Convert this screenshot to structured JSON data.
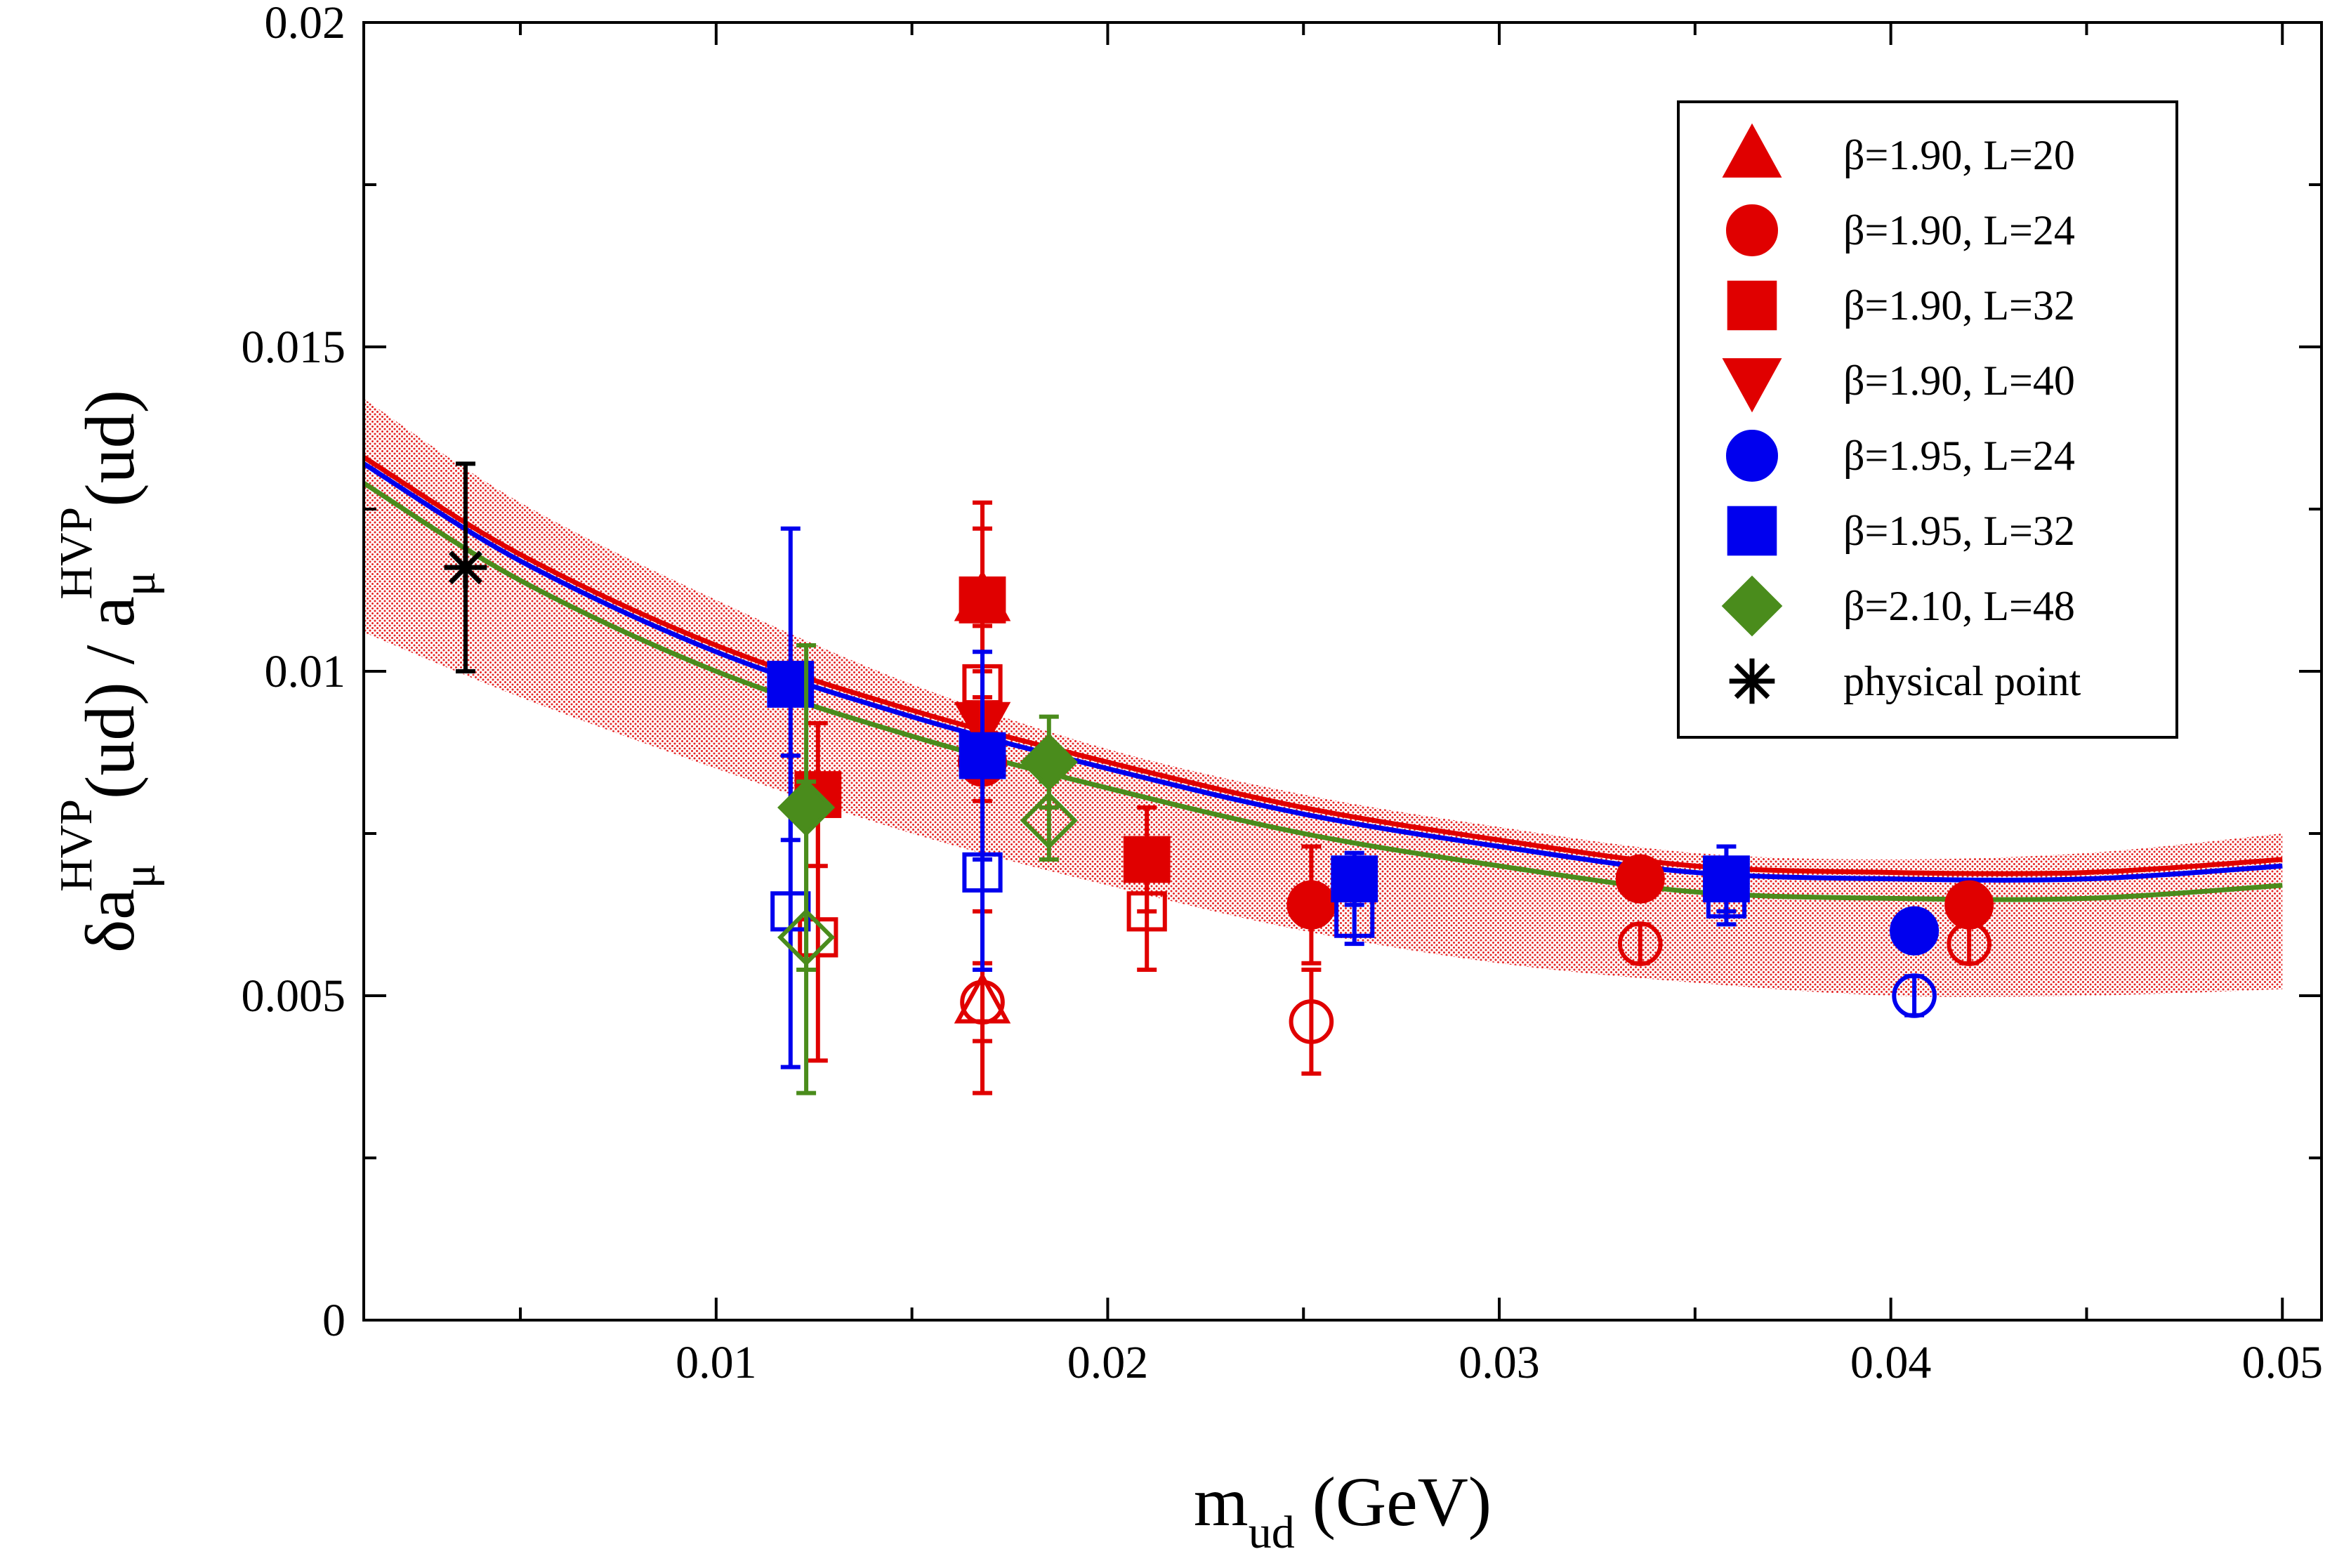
{
  "chart_data": {
    "type": "scatter",
    "title": "",
    "xlabel": {
      "main": "m",
      "sub": "ud",
      "rest": " (GeV)"
    },
    "ylabel": {
      "delta": "δa",
      "sub1": "μ",
      "sup1": "HVP",
      "mid": "(ud) / a",
      "sub2": "μ",
      "sup2": "HVP",
      "end": "(ud)"
    },
    "xlim": [
      0.001,
      0.051
    ],
    "ylim": [
      0,
      0.02
    ],
    "xticks": [
      0.01,
      0.02,
      0.03,
      0.04,
      0.05
    ],
    "xtick_labels": [
      "0.01",
      "0.02",
      "0.03",
      "0.04",
      "0.05"
    ],
    "yticks": [
      0,
      0.005,
      0.01,
      0.015,
      0.02
    ],
    "ytick_labels": [
      "0",
      "0.005",
      "0.01",
      "0.015",
      "0.02"
    ],
    "legend_position": "top-right",
    "legend": [
      {
        "label": "β=1.90, L=20",
        "marker": "triangle-up",
        "color": "#e00000"
      },
      {
        "label": "β=1.90, L=24",
        "marker": "circle",
        "color": "#e00000"
      },
      {
        "label": "β=1.90, L=32",
        "marker": "square",
        "color": "#e00000"
      },
      {
        "label": "β=1.90, L=40",
        "marker": "triangle-down",
        "color": "#e00000"
      },
      {
        "label": "β=1.95, L=24",
        "marker": "circle",
        "color": "#0000ee"
      },
      {
        "label": "β=1.95, L=32",
        "marker": "square",
        "color": "#0000ee"
      },
      {
        "label": "β=2.10, L=48",
        "marker": "diamond",
        "color": "#4a8c1c"
      },
      {
        "label": "physical point",
        "marker": "asterisk",
        "color": "#000000"
      }
    ],
    "fit_curves": [
      {
        "name": "fit β=1.90",
        "color": "#e00000",
        "x": [
          0.001,
          0.005,
          0.01,
          0.015,
          0.02,
          0.025,
          0.03,
          0.035,
          0.04,
          0.045,
          0.05
        ],
        "y": [
          0.0133,
          0.0118,
          0.0104,
          0.0094,
          0.0086,
          0.0079,
          0.0074,
          0.007,
          0.0069,
          0.0069,
          0.0071
        ]
      },
      {
        "name": "fit β=1.95",
        "color": "#0000ee",
        "x": [
          0.001,
          0.005,
          0.01,
          0.015,
          0.02,
          0.025,
          0.03,
          0.035,
          0.04,
          0.045,
          0.05
        ],
        "y": [
          0.0132,
          0.0117,
          0.0103,
          0.0093,
          0.0085,
          0.0078,
          0.0073,
          0.0069,
          0.0068,
          0.0068,
          0.007
        ]
      },
      {
        "name": "fit β=2.10",
        "color": "#4a8c1c",
        "x": [
          0.001,
          0.005,
          0.01,
          0.015,
          0.02,
          0.025,
          0.03,
          0.035,
          0.04,
          0.045,
          0.05
        ],
        "y": [
          0.0129,
          0.0114,
          0.01,
          0.009,
          0.0082,
          0.0075,
          0.007,
          0.0066,
          0.0065,
          0.0065,
          0.0067
        ]
      }
    ],
    "error_band": {
      "name": "fit uncertainty",
      "color": "#e00000",
      "x": [
        0.001,
        0.005,
        0.01,
        0.015,
        0.02,
        0.025,
        0.03,
        0.035,
        0.04,
        0.045,
        0.05
      ],
      "upper": [
        0.0142,
        0.0126,
        0.0111,
        0.0098,
        0.0088,
        0.0081,
        0.0076,
        0.0072,
        0.0071,
        0.0072,
        0.0075
      ],
      "lower": [
        0.0106,
        0.0096,
        0.0085,
        0.0075,
        0.0067,
        0.006,
        0.0055,
        0.0052,
        0.005,
        0.005,
        0.0051
      ]
    },
    "series": [
      {
        "name": "β=1.90, L=20",
        "marker": "triangle-up",
        "color": "#e00000",
        "points": [
          {
            "x": 0.0168,
            "y": 0.0111,
            "err": 0.0011,
            "filled": true
          },
          {
            "x": 0.0168,
            "y": 0.0049,
            "err": 0.0014,
            "filled": false
          }
        ]
      },
      {
        "name": "β=1.90, L=24",
        "marker": "circle",
        "color": "#e00000",
        "points": [
          {
            "x": 0.0168,
            "y": 0.0086,
            "err": 0.0006,
            "filled": true
          },
          {
            "x": 0.0168,
            "y": 0.0049,
            "err": 0.0006,
            "filled": false
          },
          {
            "x": 0.0252,
            "y": 0.0064,
            "err": 0.0009,
            "filled": true
          },
          {
            "x": 0.0252,
            "y": 0.0046,
            "err": 0.0008,
            "filled": false
          },
          {
            "x": 0.0336,
            "y": 0.0068,
            "err": 0.0003,
            "filled": true
          },
          {
            "x": 0.0336,
            "y": 0.0058,
            "err": 0.0003,
            "filled": false
          },
          {
            "x": 0.042,
            "y": 0.0064,
            "err": 0.0003,
            "filled": true
          },
          {
            "x": 0.042,
            "y": 0.0058,
            "err": 0.0003,
            "filled": false
          }
        ]
      },
      {
        "name": "β=1.90, L=32",
        "marker": "square",
        "color": "#e00000",
        "points": [
          {
            "x": 0.0126,
            "y": 0.0081,
            "err": 0.0011,
            "filled": true
          },
          {
            "x": 0.0126,
            "y": 0.0059,
            "err": 0.0019,
            "filled": false
          },
          {
            "x": 0.0168,
            "y": 0.0111,
            "err": 0.0015,
            "filled": true
          },
          {
            "x": 0.0168,
            "y": 0.0098,
            "err": 0.0009,
            "filled": false
          },
          {
            "x": 0.021,
            "y": 0.0071,
            "err": 0.0008,
            "filled": true
          },
          {
            "x": 0.021,
            "y": 0.0063,
            "err": 0.0009,
            "filled": false
          }
        ]
      },
      {
        "name": "β=1.90, L=40",
        "marker": "triangle-down",
        "color": "#e00000",
        "points": [
          {
            "x": 0.0168,
            "y": 0.0092,
            "err": 0.0008,
            "filled": true
          }
        ]
      },
      {
        "name": "β=1.95, L=24",
        "marker": "circle",
        "color": "#0000ee",
        "points": [
          {
            "x": 0.0406,
            "y": 0.006,
            "err": 0.0003,
            "filled": true
          },
          {
            "x": 0.0406,
            "y": 0.005,
            "err": 0.0003,
            "filled": false
          }
        ]
      },
      {
        "name": "β=1.95, L=32",
        "marker": "square",
        "color": "#0000ee",
        "points": [
          {
            "x": 0.0119,
            "y": 0.0098,
            "err": 0.0024,
            "filled": true
          },
          {
            "x": 0.0119,
            "y": 0.0063,
            "err": 0.0024,
            "filled": false
          },
          {
            "x": 0.0168,
            "y": 0.0087,
            "err": 0.0016,
            "filled": true
          },
          {
            "x": 0.0168,
            "y": 0.0069,
            "err": 0.0015,
            "filled": false
          },
          {
            "x": 0.0263,
            "y": 0.0068,
            "err": 0.0004,
            "filled": true
          },
          {
            "x": 0.0263,
            "y": 0.0062,
            "err": 0.0004,
            "filled": false
          },
          {
            "x": 0.0358,
            "y": 0.0068,
            "err": 0.0005,
            "filled": true
          },
          {
            "x": 0.0358,
            "y": 0.0065,
            "err": 0.0004,
            "filled": false
          }
        ]
      },
      {
        "name": "β=2.10, L=48",
        "marker": "diamond",
        "color": "#4a8c1c",
        "points": [
          {
            "x": 0.0123,
            "y": 0.0079,
            "err": 0.0025,
            "filled": true
          },
          {
            "x": 0.0123,
            "y": 0.0059,
            "err": 0.0024,
            "filled": false
          },
          {
            "x": 0.0185,
            "y": 0.0086,
            "err": 0.0007,
            "filled": true
          },
          {
            "x": 0.0185,
            "y": 0.0077,
            "err": 0.0006,
            "filled": false
          }
        ]
      },
      {
        "name": "physical point",
        "marker": "asterisk",
        "color": "#000000",
        "points": [
          {
            "x": 0.0036,
            "y": 0.0116,
            "err": 0.0016,
            "filled": true
          }
        ]
      }
    ]
  }
}
